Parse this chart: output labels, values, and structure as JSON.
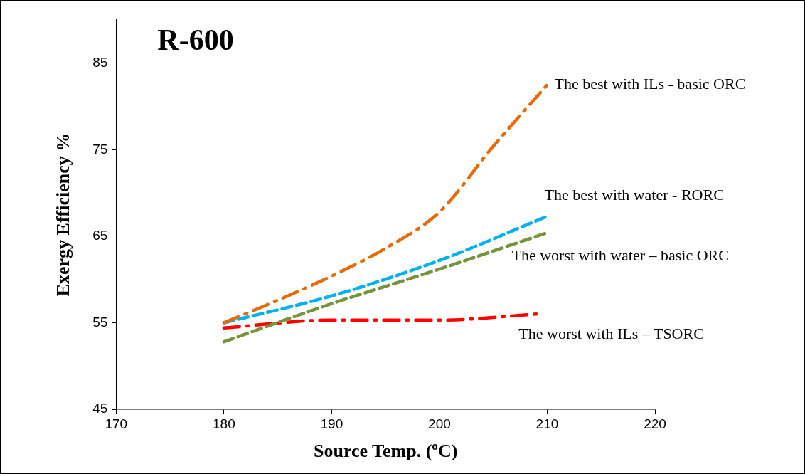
{
  "chart_data": {
    "type": "line",
    "title": "R-600",
    "xlabel": "Source Temp. (ºC)",
    "ylabel": "Exergy Efficiency %",
    "xlim": [
      170,
      220
    ],
    "xticks": [
      170,
      180,
      190,
      200,
      210,
      220
    ],
    "ylim": [
      45,
      90
    ],
    "yticks": [
      45,
      55,
      65,
      75,
      85
    ],
    "grid": false,
    "legend": false,
    "marker": "none",
    "series": [
      {
        "name": "The best with ILs - basic ORC",
        "color": "#e46c0a",
        "line_style": "dashdot",
        "x": [
          180,
          185,
          190,
          195,
          200,
          205,
          210
        ],
        "values": [
          55.0,
          57.6,
          60.4,
          63.6,
          67.8,
          75.4,
          82.5
        ]
      },
      {
        "name": "The best with water - RORC",
        "color": "#00b0f0",
        "line_style": "dashed",
        "x": [
          180,
          190,
          200,
          210
        ],
        "values": [
          55.0,
          58.1,
          62.2,
          67.3
        ]
      },
      {
        "name": "The worst with water – basic ORC",
        "color": "#77933c",
        "line_style": "dashed",
        "x": [
          180,
          190,
          200,
          210
        ],
        "values": [
          52.8,
          57.2,
          61.2,
          65.4
        ]
      },
      {
        "name": "The worst with ILs – TSORC",
        "color": "#ff0000",
        "line_style": "dashdot",
        "x": [
          180,
          190,
          200,
          209
        ],
        "values": [
          54.4,
          55.3,
          55.3,
          56.0
        ]
      }
    ]
  }
}
